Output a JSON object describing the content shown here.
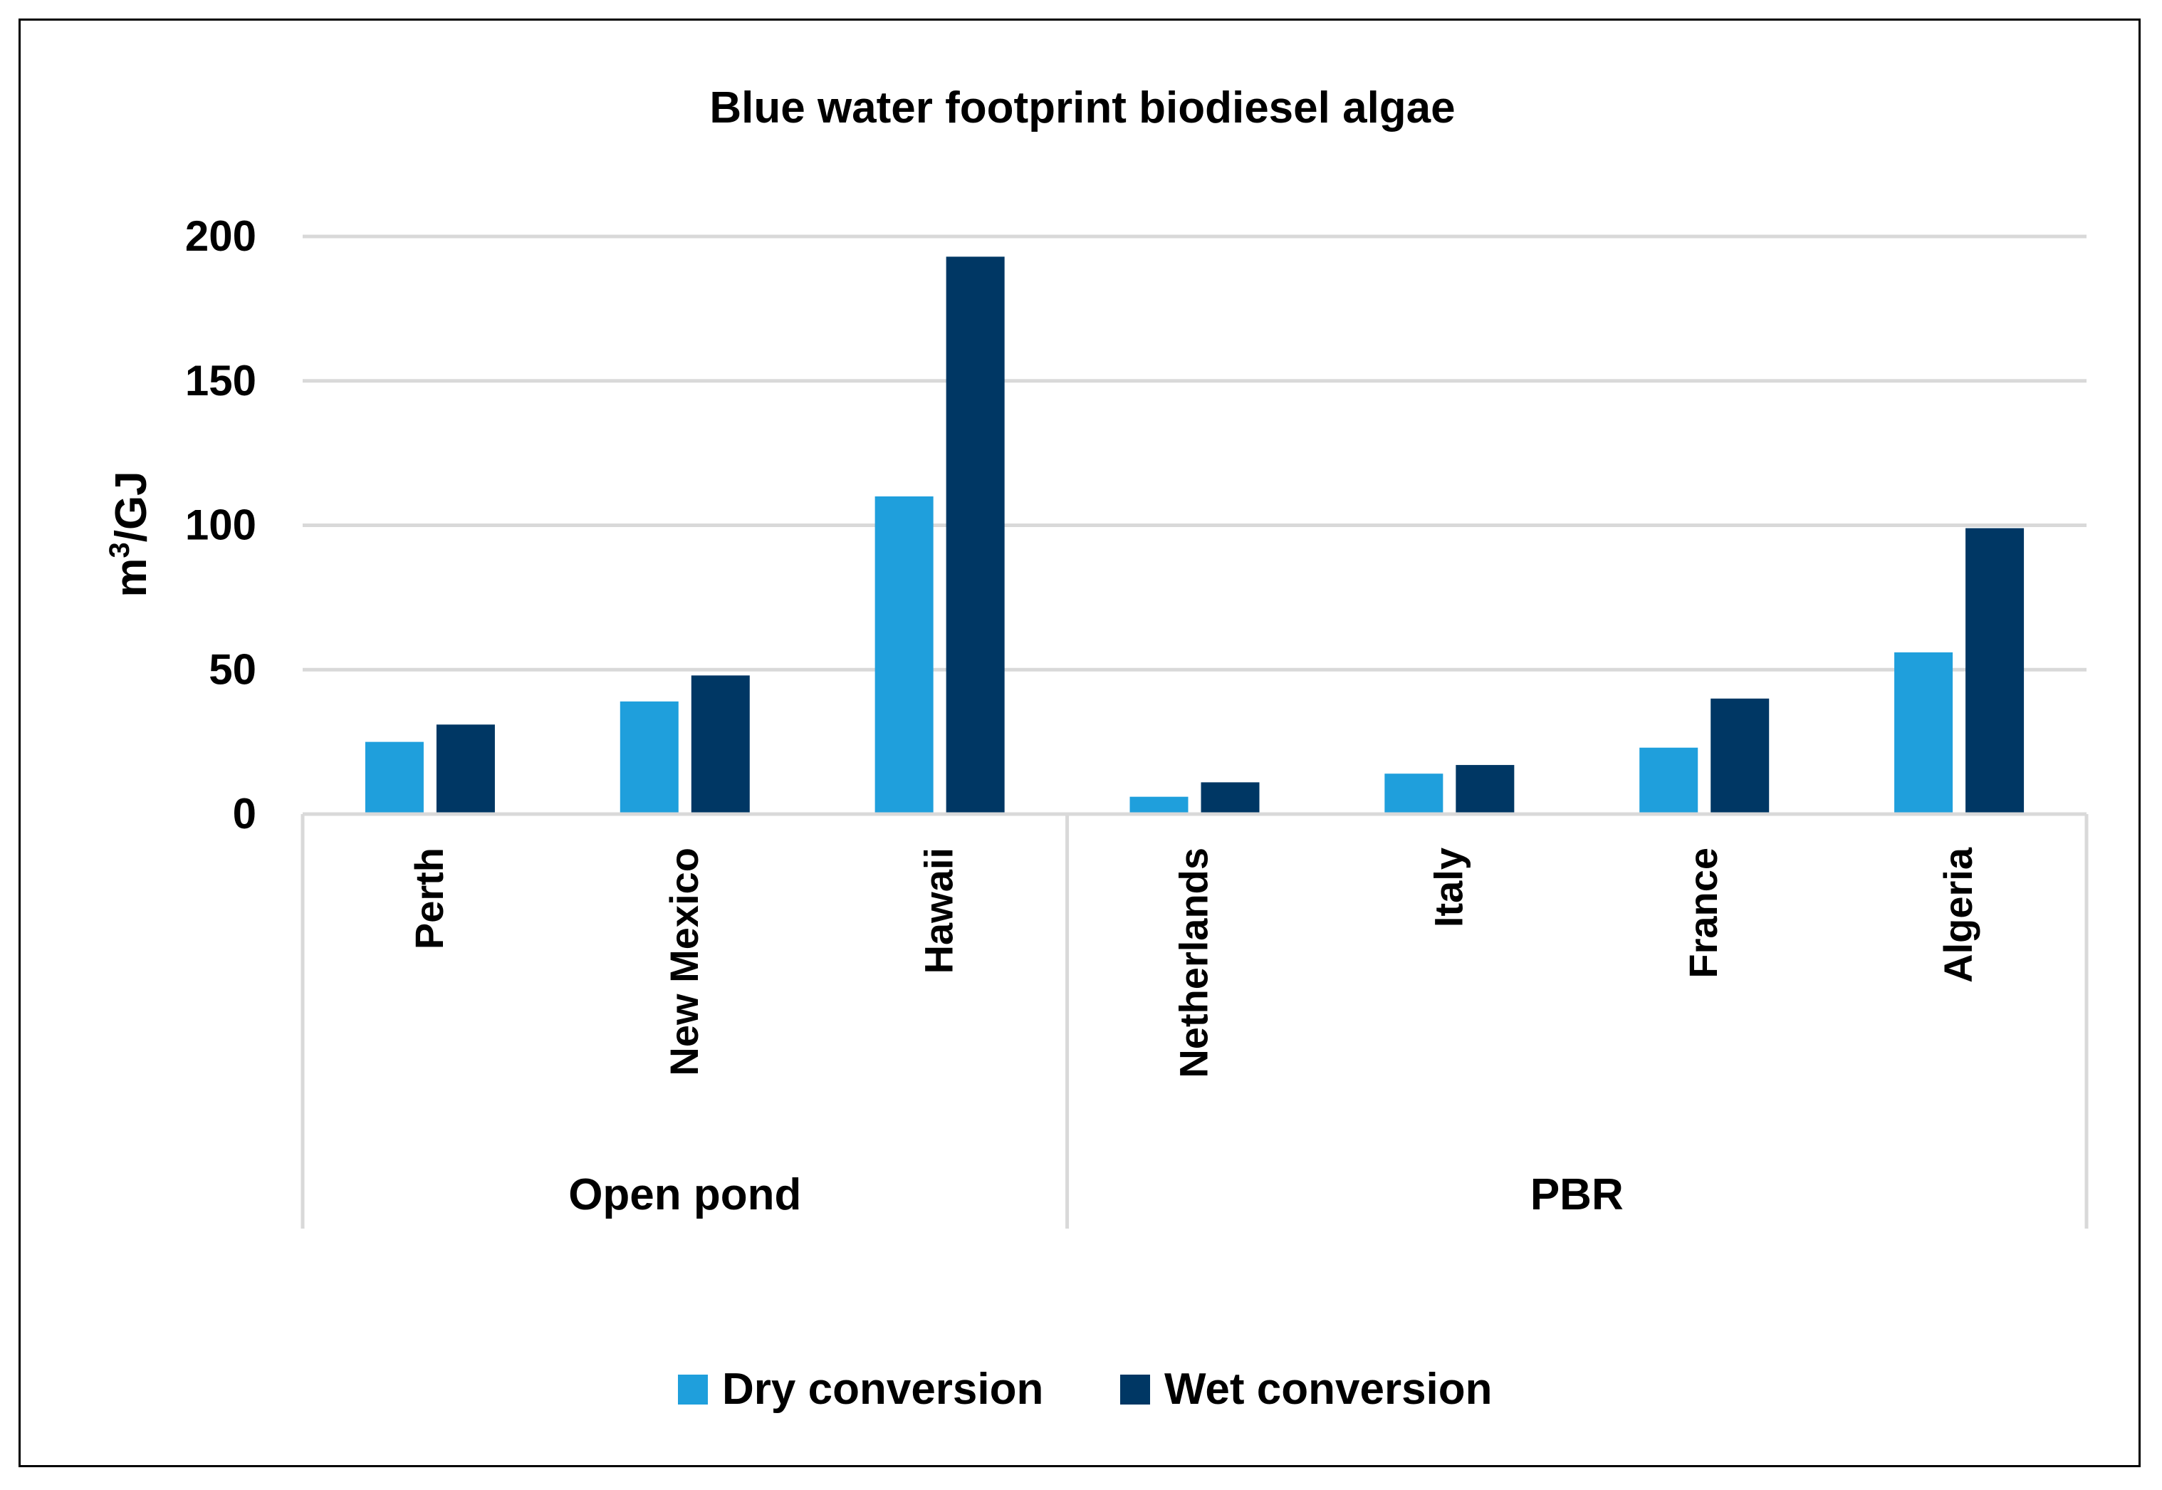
{
  "chart_data": {
    "type": "bar",
    "title": "Blue water footprint biodiesel algae",
    "ylabel_base": "m",
    "ylabel_sup": "3",
    "ylabel_rest": "/GJ",
    "xlabel": "",
    "ylim": [
      0,
      200
    ],
    "yticks": [
      0,
      50,
      100,
      150,
      200
    ],
    "categories": [
      "Perth",
      "New Mexico",
      "Hawaii",
      "Netherlands",
      "Italy",
      "France",
      "Algeria"
    ],
    "groups": [
      {
        "label": "Open pond",
        "count": 3
      },
      {
        "label": "PBR",
        "count": 4
      }
    ],
    "series": [
      {
        "name": "Dry conversion",
        "color": "#1f9fdc",
        "values": [
          25,
          39,
          110,
          6,
          14,
          23,
          56
        ]
      },
      {
        "name": "Wet conversion",
        "color": "#003764",
        "values": [
          31,
          48,
          193,
          11,
          17,
          40,
          99
        ]
      }
    ],
    "legend_position": "bottom"
  }
}
